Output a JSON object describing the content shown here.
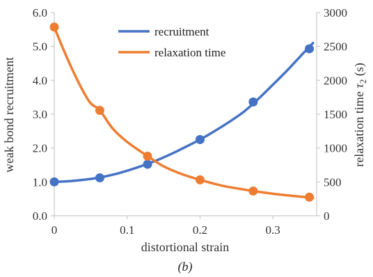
{
  "chart_data": {
    "type": "line",
    "caption": "(b)",
    "xlabel": "distortional strain",
    "ylabel_left": "weak bond recruitment",
    "ylabel_right_prefix": "relaxation time ",
    "ylabel_right_symbol": "τ",
    "ylabel_right_subscript": "2",
    "ylabel_right_suffix": " (s)",
    "xlim": [
      0,
      0.36
    ],
    "ylim_left": [
      0,
      6
    ],
    "ylim_right": [
      0,
      3000
    ],
    "x_ticks": [
      0,
      0.1,
      0.2,
      0.3
    ],
    "x_tick_labels": [
      "0",
      "0.1",
      "0.2",
      "0.3"
    ],
    "y_left_ticks": [
      0,
      1,
      2,
      3,
      4,
      5,
      6
    ],
    "y_left_tick_labels": [
      "0.0",
      "1.0",
      "2.0",
      "3.0",
      "4.0",
      "5.0",
      "6.0"
    ],
    "y_right_ticks": [
      0,
      500,
      1000,
      1500,
      2000,
      2500,
      3000
    ],
    "y_right_tick_labels": [
      "0",
      "500",
      "1000",
      "1500",
      "2000",
      "2500",
      "3000"
    ],
    "grid": false,
    "legend_position": "top-center",
    "series": [
      {
        "name": "recruitment",
        "axis": "left",
        "color": "#4472C4",
        "x": [
          0,
          0.0625,
          0.128,
          0.2,
          0.273,
          0.35
        ],
        "y": [
          1.0,
          1.12,
          1.52,
          2.25,
          3.36,
          4.93
        ],
        "curve_x": [
          0,
          0.02,
          0.04,
          0.06,
          0.08,
          0.1,
          0.12,
          0.14,
          0.16,
          0.18,
          0.2,
          0.22,
          0.24,
          0.26,
          0.28,
          0.3,
          0.32,
          0.34,
          0.355
        ],
        "curve_y": [
          1.0,
          1.02,
          1.06,
          1.12,
          1.21,
          1.33,
          1.47,
          1.63,
          1.82,
          2.03,
          2.25,
          2.5,
          2.77,
          3.07,
          3.45,
          3.87,
          4.3,
          4.76,
          5.1
        ]
      },
      {
        "name": "relaxation time",
        "axis": "right",
        "color": "#ED7D31",
        "x": [
          0,
          0.0625,
          0.128,
          0.2,
          0.273,
          0.35
        ],
        "y": [
          2785,
          1555,
          880,
          530,
          365,
          275
        ],
        "curve_x": [
          0,
          0.01,
          0.02,
          0.03,
          0.04,
          0.05,
          0.0625,
          0.08,
          0.1,
          0.128,
          0.15,
          0.175,
          0.2,
          0.23,
          0.25,
          0.273,
          0.3,
          0.33,
          0.355
        ],
        "curve_y": [
          2785,
          2520,
          2270,
          2040,
          1830,
          1660,
          1555,
          1290,
          1090,
          880,
          730,
          615,
          530,
          445,
          405,
          365,
          325,
          290,
          265
        ]
      }
    ]
  }
}
